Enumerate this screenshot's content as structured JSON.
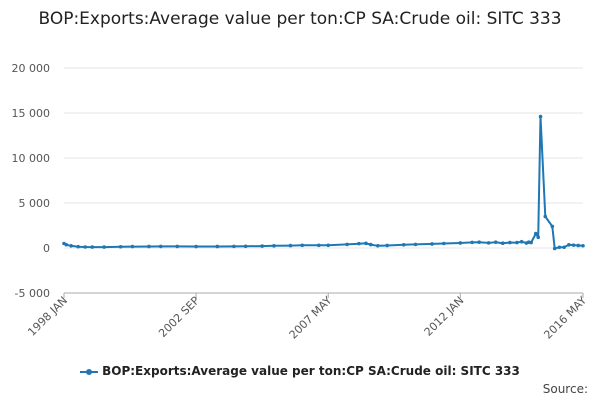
{
  "chart_data": {
    "type": "line",
    "title": "BOP:Exports:Average value per ton:CP SA:Crude oil: SITC 333",
    "xlabel": "",
    "ylabel": "",
    "ylim": [
      -5000,
      20000
    ],
    "yticks": [
      20000,
      15000,
      10000,
      5000,
      0,
      -5000
    ],
    "ytick_labels": [
      "20 000",
      "15 000",
      "10 000",
      "5 000",
      "0",
      "-5 000"
    ],
    "xtick_labels": [
      "1998 JAN",
      "2002 SEP",
      "2007 MAY",
      "2012 JAN",
      "2016 MAY"
    ],
    "grid": "horizontal",
    "legend_position": "bottom",
    "color": "#1f77b4",
    "series": [
      {
        "name": "BOP:Exports:Average value per ton:CP SA:Crude oil: SITC 333",
        "points": [
          [
            "1998-01",
            500
          ],
          [
            "1998-02",
            360
          ],
          [
            "1998-04",
            240
          ],
          [
            "1998-07",
            150
          ],
          [
            "1998-10",
            110
          ],
          [
            "1999-01",
            100
          ],
          [
            "1999-06",
            100
          ],
          [
            "2000-01",
            140
          ],
          [
            "2000-06",
            160
          ],
          [
            "2001-01",
            170
          ],
          [
            "2001-06",
            175
          ],
          [
            "2002-01",
            175
          ],
          [
            "2002-09",
            165
          ],
          [
            "2003-06",
            170
          ],
          [
            "2004-01",
            180
          ],
          [
            "2004-06",
            190
          ],
          [
            "2005-01",
            210
          ],
          [
            "2005-06",
            240
          ],
          [
            "2006-01",
            270
          ],
          [
            "2006-06",
            300
          ],
          [
            "2007-01",
            300
          ],
          [
            "2007-05",
            300
          ],
          [
            "2008-01",
            400
          ],
          [
            "2008-06",
            480
          ],
          [
            "2008-09",
            520
          ],
          [
            "2008-11",
            380
          ],
          [
            "2009-02",
            250
          ],
          [
            "2009-06",
            280
          ],
          [
            "2010-01",
            350
          ],
          [
            "2010-06",
            400
          ],
          [
            "2011-01",
            450
          ],
          [
            "2011-06",
            500
          ],
          [
            "2012-01",
            560
          ],
          [
            "2012-06",
            620
          ],
          [
            "2012-09",
            650
          ],
          [
            "2013-01",
            570
          ],
          [
            "2013-04",
            650
          ],
          [
            "2013-07",
            530
          ],
          [
            "2013-10",
            600
          ],
          [
            "2014-01",
            600
          ],
          [
            "2014-03",
            700
          ],
          [
            "2014-05",
            550
          ],
          [
            "2014-06",
            650
          ],
          [
            "2014-07",
            600
          ],
          [
            "2014-09",
            1600
          ],
          [
            "2014-10",
            1200
          ],
          [
            "2014-11",
            14600
          ],
          [
            "2015-01",
            3500
          ],
          [
            "2015-04",
            2400
          ],
          [
            "2015-05",
            -50
          ],
          [
            "2015-07",
            80
          ],
          [
            "2015-09",
            80
          ],
          [
            "2015-11",
            350
          ],
          [
            "2016-01",
            320
          ],
          [
            "2016-03",
            280
          ],
          [
            "2016-05",
            250
          ]
        ]
      }
    ]
  },
  "footer": {
    "source_label": "Source:"
  }
}
